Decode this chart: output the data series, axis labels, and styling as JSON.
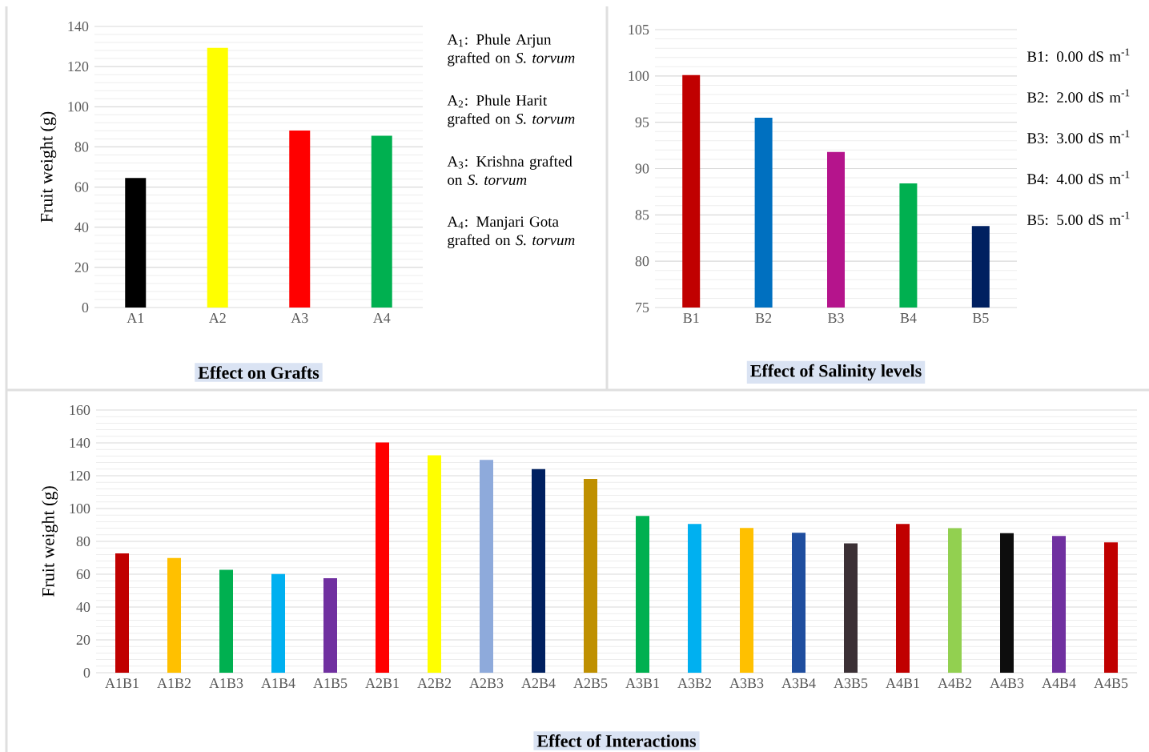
{
  "chart_data": [
    {
      "type": "bar",
      "title": "Effect on Grafts",
      "ylabel": "Fruit weight (g)",
      "categories": [
        "A1",
        "A2",
        "A3",
        "A4"
      ],
      "values": [
        64.5,
        129.3,
        88.1,
        85.6
      ],
      "colors": [
        "#000000",
        "#ffff00",
        "#ff0000",
        "#00b050"
      ],
      "ylim": [
        0,
        140
      ],
      "yticks": [
        0,
        20,
        40,
        60,
        80,
        100,
        120,
        140
      ],
      "grid": "y",
      "annotations": [
        "A$_{1}$: Phule Arjun grafted on *S. torvum*",
        "A$_{2}$: Phule Harit grafted on *S. torvum*",
        "A$_{3}$: Krishna grafted on *S. torvum*",
        "A$_{4}$: Manjari Gota grafted on *S. torvum*"
      ]
    },
    {
      "type": "bar",
      "title": "Effect of Salinity levels",
      "categories": [
        "B1",
        "B2",
        "B3",
        "B4",
        "B5"
      ],
      "values": [
        100.1,
        95.5,
        91.8,
        88.4,
        83.8
      ],
      "colors": [
        "#c00000",
        "#0070c0",
        "#b5148c",
        "#00b050",
        "#002060"
      ],
      "ylim": [
        75,
        105
      ],
      "yticks": [
        75,
        80,
        85,
        90,
        95,
        100,
        105
      ],
      "grid": "y",
      "annotations": [
        "B1: 0.00 dS m$^{-1}$",
        "B2: 2.00 dS m$^{-1}$",
        "B3: 3.00 dS m$^{-1}$",
        "B4: 4.00 dS m$^{-1}$",
        "B5: 5.00 dS m$^{-1}$"
      ]
    },
    {
      "type": "bar",
      "title": "Effect of Interactions",
      "ylabel": "Fruit weight (g)",
      "categories": [
        "A1B1",
        "A1B2",
        "A1B3",
        "A1B4",
        "A1B5",
        "A2B1",
        "A2B2",
        "A2B3",
        "A2B4",
        "A2B5",
        "A3B1",
        "A3B2",
        "A3B3",
        "A3B4",
        "A3B5",
        "A4B1",
        "A4B2",
        "A4B3",
        "A4B4",
        "A4B5"
      ],
      "values": [
        72.7,
        69.9,
        62.7,
        60.1,
        57.5,
        140.3,
        132.4,
        129.6,
        124.0,
        118.1,
        95.5,
        90.6,
        88.2,
        85.2,
        78.8,
        90.6,
        88.0,
        85.0,
        83.3,
        79.4
      ],
      "colors": [
        "#c00000",
        "#ffc000",
        "#00b050",
        "#00b0f0",
        "#7030a0",
        "#ff0000",
        "#ffff00",
        "#8eaadb",
        "#002060",
        "#bf9000",
        "#00b050",
        "#00b0f0",
        "#ffc000",
        "#1f4e9f",
        "#3b3035",
        "#c00000",
        "#92d050",
        "#0d0d0d",
        "#7030a0",
        "#c00000"
      ],
      "ylim": [
        0,
        160
      ],
      "yticks": [
        0,
        20,
        40,
        60,
        80,
        100,
        120,
        140,
        160
      ],
      "grid": "y"
    }
  ]
}
